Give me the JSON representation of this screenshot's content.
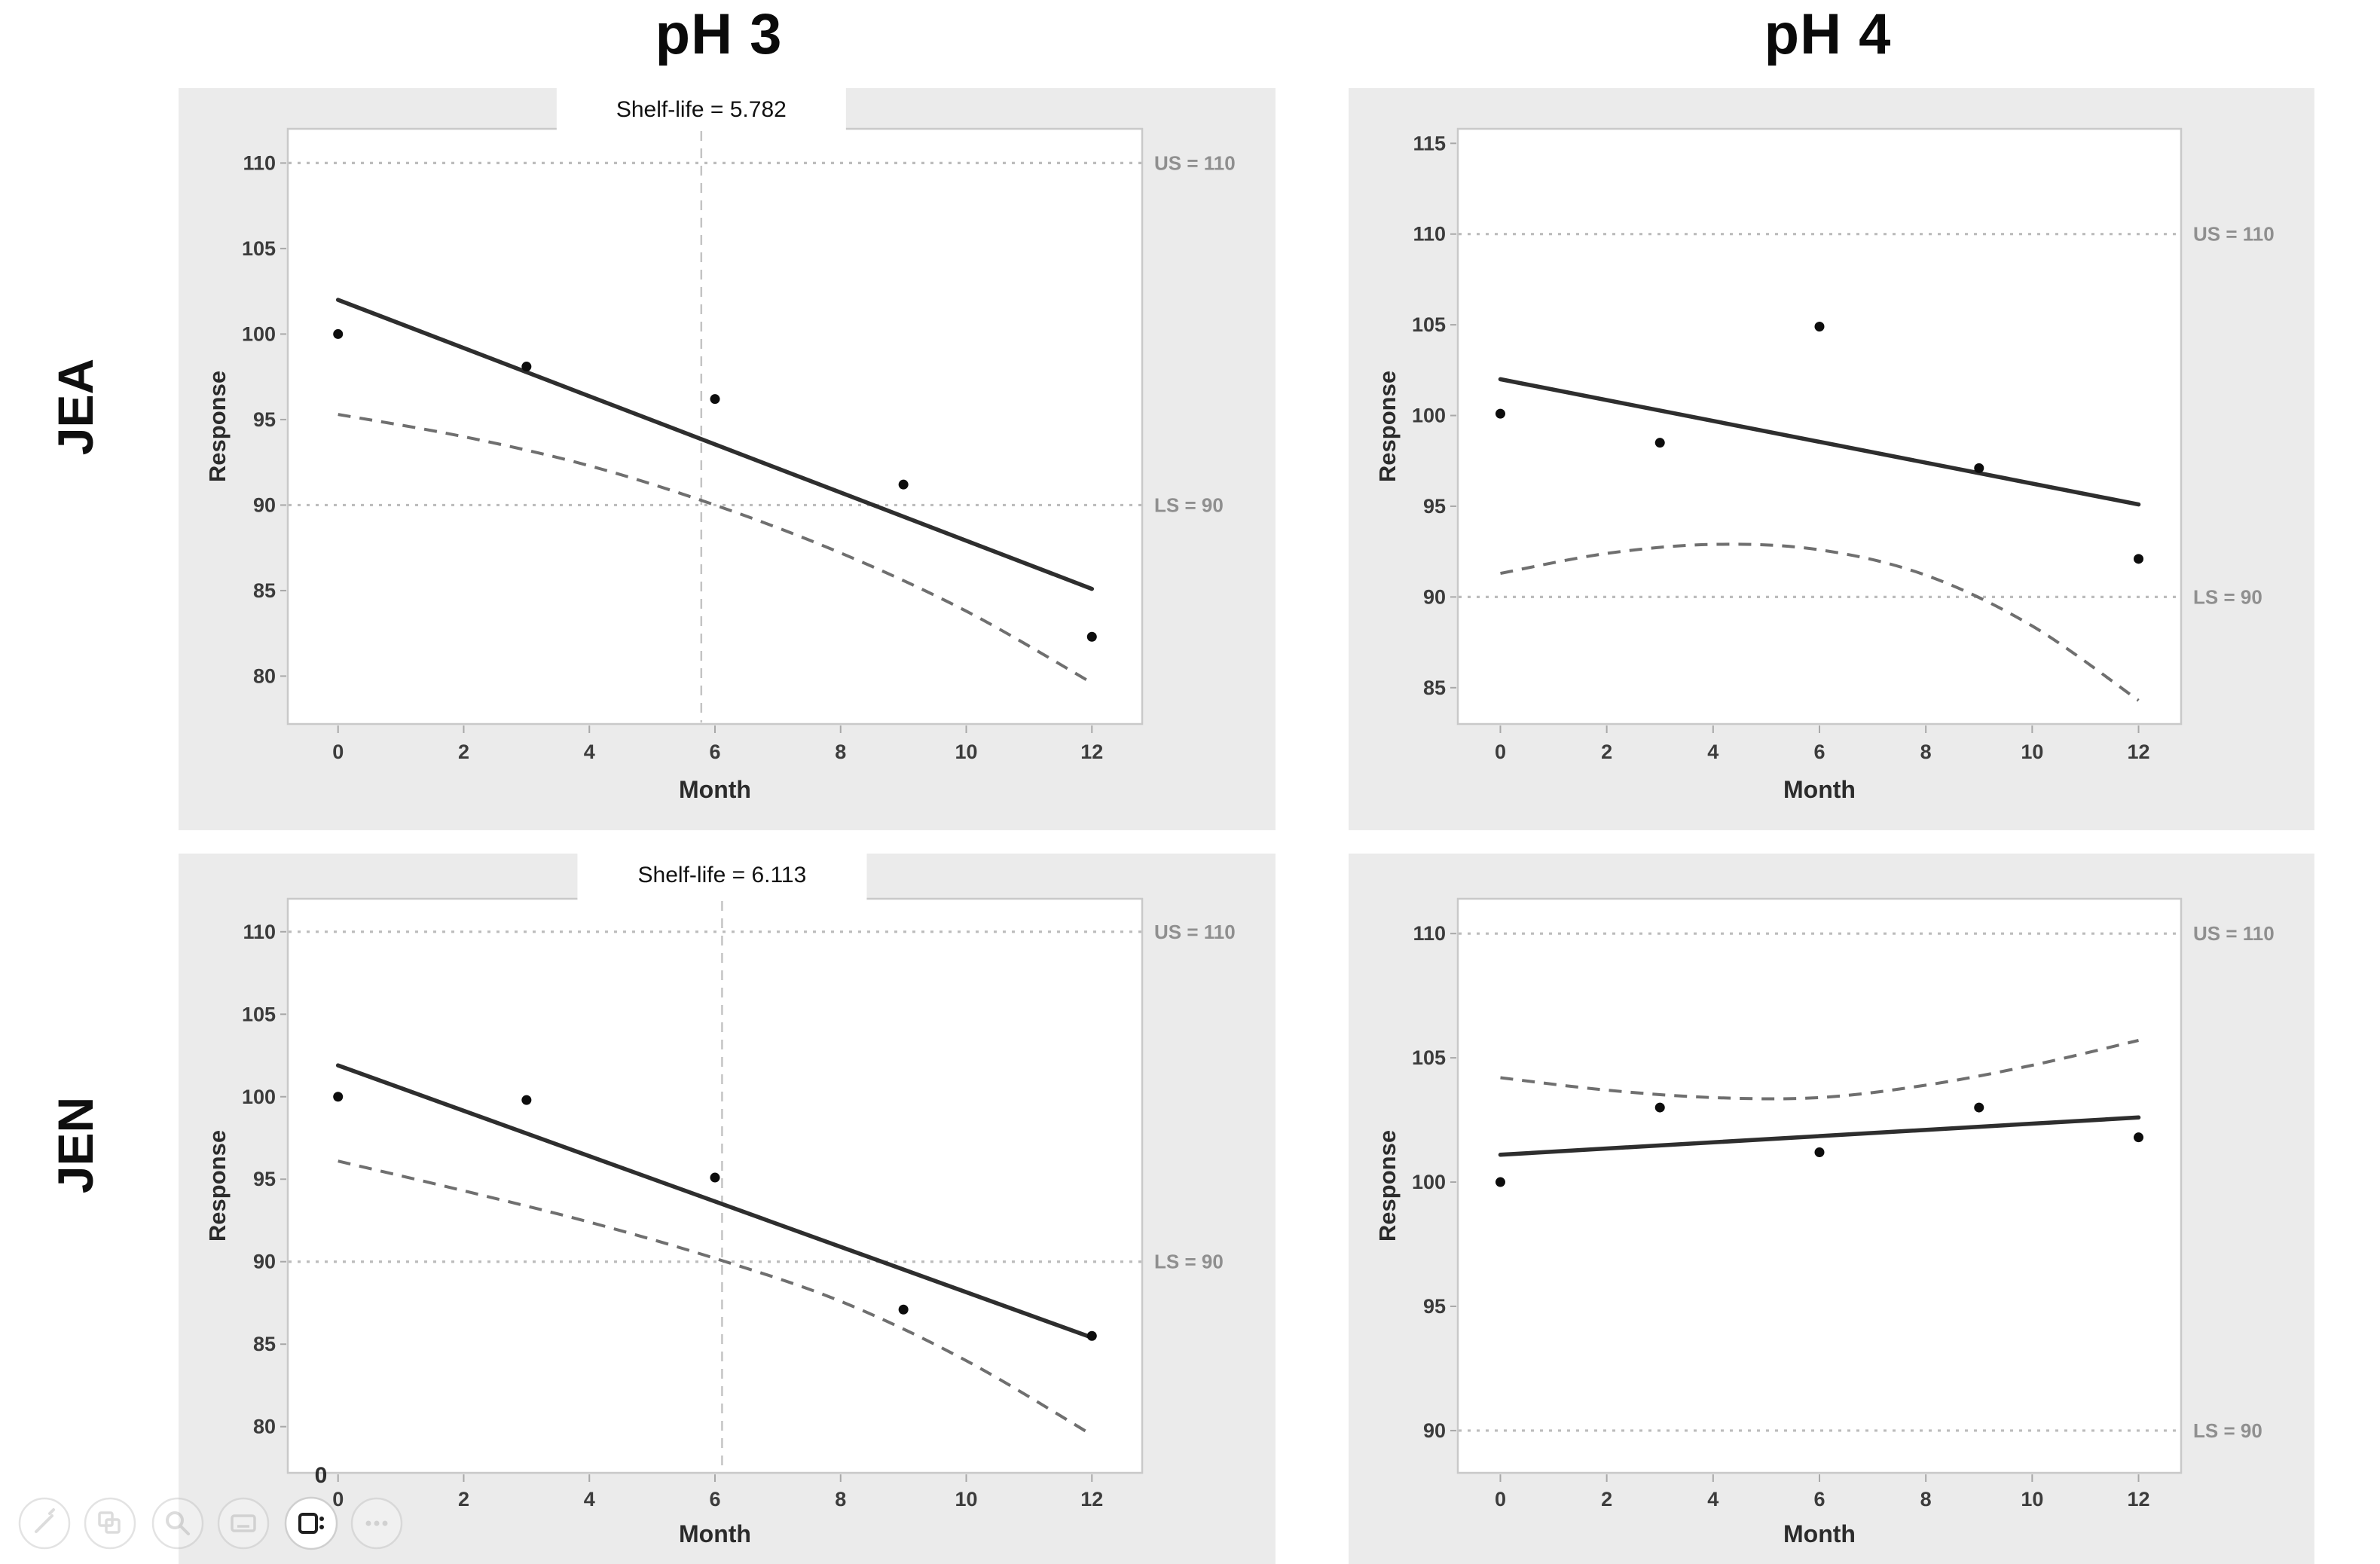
{
  "page": {
    "background": "#ffffff",
    "panel_background": "#ebebeb"
  },
  "columns": [
    {
      "label": "pH 3"
    },
    {
      "label": "pH 4"
    }
  ],
  "rows": [
    {
      "label": "JEA"
    },
    {
      "label": "JEN"
    }
  ],
  "toolbar": {
    "badge": "0",
    "icons": [
      {
        "name": "pen"
      },
      {
        "name": "copy"
      },
      {
        "name": "search"
      },
      {
        "name": "keyboard"
      },
      {
        "name": "camera",
        "active": true
      },
      {
        "name": "more"
      }
    ]
  },
  "chart_data": [
    {
      "id": "jea-ph3",
      "type": "scatter",
      "row": "JEA",
      "column": "pH 3",
      "annotation": "Shelf-life = 5.782",
      "shelf_life": 5.782,
      "xlabel": "Month",
      "ylabel": "Response",
      "x": [
        0,
        3,
        6,
        9,
        12
      ],
      "points": [
        100.0,
        98.1,
        96.2,
        91.2,
        82.3
      ],
      "fit_line": {
        "x": [
          0,
          12
        ],
        "y": [
          102.0,
          85.1
        ]
      },
      "ci_band": {
        "side": "lower",
        "x": [
          0,
          2,
          4,
          6,
          8,
          10,
          12
        ],
        "y": [
          95.3,
          94.0,
          92.3,
          90.0,
          87.2,
          83.8,
          79.6
        ]
      },
      "upper_spec": {
        "label": "US = 110",
        "value": 110
      },
      "lower_spec": {
        "label": "LS = 90",
        "value": 90
      },
      "xlim": [
        -0.8,
        12.8
      ],
      "ylim": [
        77.2,
        112.0
      ],
      "xticks": [
        0,
        2,
        4,
        6,
        8,
        10,
        12
      ],
      "yticks": [
        80,
        85,
        90,
        95,
        100,
        105,
        110
      ],
      "grid": false
    },
    {
      "id": "jea-ph4",
      "type": "scatter",
      "row": "JEA",
      "column": "pH 4",
      "annotation": null,
      "shelf_life": null,
      "xlabel": "Month",
      "ylabel": "Response",
      "x": [
        0,
        3,
        6,
        9,
        12
      ],
      "points": [
        100.1,
        98.5,
        104.9,
        97.1,
        92.1
      ],
      "fit_line": {
        "x": [
          0,
          12
        ],
        "y": [
          102.0,
          95.1
        ]
      },
      "ci_band": {
        "side": "lower",
        "x": [
          0,
          2,
          4,
          6,
          8,
          10,
          12
        ],
        "y": [
          91.3,
          92.4,
          92.9,
          92.6,
          91.2,
          88.4,
          84.3
        ]
      },
      "upper_spec": {
        "label": "US = 110",
        "value": 110
      },
      "lower_spec": {
        "label": "LS = 90",
        "value": 90
      },
      "xlim": [
        -0.8,
        12.8
      ],
      "ylim": [
        83.0,
        115.8
      ],
      "xticks": [
        0,
        2,
        4,
        6,
        8,
        10,
        12
      ],
      "yticks": [
        85,
        90,
        95,
        100,
        105,
        110,
        115
      ],
      "grid": false
    },
    {
      "id": "jen-ph3",
      "type": "scatter",
      "row": "JEN",
      "column": "pH 3",
      "annotation": "Shelf-life = 6.113",
      "shelf_life": 6.113,
      "xlabel": "Month",
      "ylabel": "Response",
      "x": [
        0,
        3,
        6,
        9,
        12
      ],
      "points": [
        100.0,
        99.8,
        95.1,
        87.1,
        85.5
      ],
      "fit_line": {
        "x": [
          0,
          12
        ],
        "y": [
          101.9,
          85.4
        ]
      },
      "ci_band": {
        "side": "lower",
        "x": [
          0,
          2,
          4,
          6,
          8,
          10,
          12
        ],
        "y": [
          96.1,
          94.3,
          92.4,
          90.2,
          87.6,
          84.0,
          79.5
        ]
      },
      "upper_spec": {
        "label": "US = 110",
        "value": 110
      },
      "lower_spec": {
        "label": "LS = 90",
        "value": 90
      },
      "xlim": [
        -0.8,
        12.8
      ],
      "ylim": [
        77.2,
        112.0
      ],
      "xticks": [
        0,
        2,
        4,
        6,
        8,
        10,
        12
      ],
      "yticks": [
        80,
        85,
        90,
        95,
        100,
        105,
        110
      ],
      "grid": false
    },
    {
      "id": "jen-ph4",
      "type": "scatter",
      "row": "JEN",
      "column": "pH 4",
      "annotation": null,
      "shelf_life": null,
      "xlabel": "Month",
      "ylabel": "Response",
      "x": [
        0,
        3,
        6,
        9,
        12
      ],
      "points": [
        100.0,
        103.0,
        101.2,
        103.0,
        101.8
      ],
      "fit_line": {
        "x": [
          0,
          12
        ],
        "y": [
          101.1,
          102.6
        ]
      },
      "ci_band": {
        "side": "upper",
        "x": [
          0,
          2,
          4,
          6,
          8,
          10,
          12
        ],
        "y": [
          104.2,
          103.7,
          103.4,
          103.4,
          103.9,
          104.7,
          105.7
        ]
      },
      "upper_spec": {
        "label": "US = 110",
        "value": 110
      },
      "lower_spec": {
        "label": "LS = 90",
        "value": 90
      },
      "xlim": [
        -0.8,
        12.8
      ],
      "ylim": [
        88.3,
        111.4
      ],
      "xticks": [
        0,
        2,
        4,
        6,
        8,
        10,
        12
      ],
      "yticks": [
        90,
        95,
        100,
        105,
        110
      ],
      "grid": false
    }
  ]
}
